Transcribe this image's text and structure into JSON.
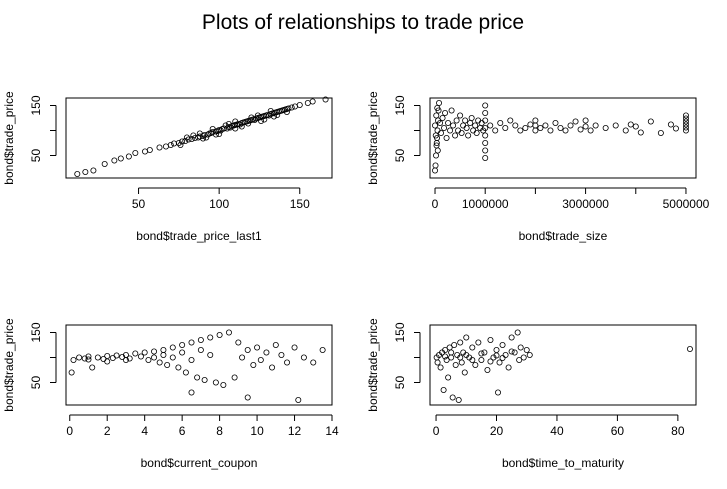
{
  "figure": {
    "title": "Plots of relationships to trade price"
  },
  "chart_data": [
    {
      "type": "scatter",
      "xlabel": "bond$trade_price_last1",
      "ylabel": "bond$trade_price",
      "xlim": [
        5,
        170
      ],
      "ylim": [
        5,
        165
      ],
      "xticks": [
        50,
        100,
        150
      ],
      "yticks": [
        50,
        100,
        150
      ],
      "xtick_labels": [
        "50",
        "100",
        "150"
      ],
      "ytick_labels": [
        "50",
        "",
        "150"
      ],
      "points": [
        [
          12,
          13
        ],
        [
          17,
          17
        ],
        [
          22,
          20
        ],
        [
          29,
          33
        ],
        [
          35,
          40
        ],
        [
          39,
          44
        ],
        [
          44,
          48
        ],
        [
          48,
          55
        ],
        [
          54,
          58
        ],
        [
          57,
          61
        ],
        [
          63,
          66
        ],
        [
          67,
          68
        ],
        [
          70,
          71
        ],
        [
          72,
          74
        ],
        [
          75,
          75
        ],
        [
          77,
          78
        ],
        [
          79,
          79
        ],
        [
          81,
          82
        ],
        [
          83,
          83
        ],
        [
          85,
          85
        ],
        [
          87,
          86
        ],
        [
          88,
          88
        ],
        [
          90,
          89
        ],
        [
          91,
          91
        ],
        [
          93,
          92
        ],
        [
          94,
          94
        ],
        [
          95,
          95
        ],
        [
          96,
          97
        ],
        [
          98,
          98
        ],
        [
          99,
          99
        ],
        [
          100,
          101
        ],
        [
          101,
          100
        ],
        [
          102,
          103
        ],
        [
          103,
          104
        ],
        [
          105,
          104
        ],
        [
          106,
          107
        ],
        [
          107,
          106
        ],
        [
          108,
          109
        ],
        [
          109,
          110
        ],
        [
          110,
          111
        ],
        [
          111,
          112
        ],
        [
          112,
          113
        ],
        [
          113,
          112
        ],
        [
          114,
          115
        ],
        [
          115,
          116
        ],
        [
          116,
          117
        ],
        [
          117,
          118
        ],
        [
          118,
          119
        ],
        [
          119,
          120
        ],
        [
          120,
          121
        ],
        [
          121,
          122
        ],
        [
          122,
          121
        ],
        [
          123,
          124
        ],
        [
          124,
          125
        ],
        [
          125,
          126
        ],
        [
          126,
          127
        ],
        [
          127,
          128
        ],
        [
          128,
          129
        ],
        [
          129,
          130
        ],
        [
          130,
          131
        ],
        [
          131,
          130
        ],
        [
          132,
          133
        ],
        [
          133,
          134
        ],
        [
          134,
          135
        ],
        [
          135,
          136
        ],
        [
          136,
          137
        ],
        [
          137,
          138
        ],
        [
          138,
          139
        ],
        [
          139,
          140
        ],
        [
          140,
          141
        ],
        [
          141,
          142
        ],
        [
          142,
          143
        ],
        [
          143,
          144
        ],
        [
          145,
          146
        ],
        [
          147,
          148
        ],
        [
          150,
          151
        ],
        [
          155,
          155
        ],
        [
          158,
          158
        ],
        [
          166,
          162
        ],
        [
          84,
          90
        ],
        [
          92,
          86
        ],
        [
          100,
          93
        ],
        [
          104,
          110
        ],
        [
          110,
          104
        ],
        [
          118,
          114
        ],
        [
          124,
          130
        ],
        [
          128,
          122
        ],
        [
          132,
          139
        ],
        [
          136,
          131
        ],
        [
          96,
          103
        ],
        [
          88,
          94
        ],
        [
          80,
          86
        ],
        [
          76,
          71
        ],
        [
          106,
          113
        ],
        [
          114,
          108
        ],
        [
          120,
          126
        ],
        [
          126,
          119
        ],
        [
          134,
          128
        ],
        [
          142,
          137
        ],
        [
          110,
          118
        ],
        [
          98,
          92
        ],
        [
          90,
          84
        ]
      ]
    },
    {
      "type": "scatter",
      "xlabel": "bond$trade_size",
      "ylabel": "bond$trade_price",
      "xlim": [
        -100000,
        5200000
      ],
      "ylim": [
        5,
        165
      ],
      "xticks": [
        0,
        1000000,
        2000000,
        3000000,
        4000000,
        5000000
      ],
      "yticks": [
        50,
        100,
        150
      ],
      "xtick_labels": [
        "0",
        "1000000",
        "",
        "3000000",
        "",
        "5000000"
      ],
      "ytick_labels": [
        "50",
        "",
        "150"
      ],
      "points": [
        [
          0,
          20
        ],
        [
          10000,
          30
        ],
        [
          20000,
          50
        ],
        [
          30000,
          70
        ],
        [
          40000,
          85
        ],
        [
          50000,
          100
        ],
        [
          60000,
          120
        ],
        [
          70000,
          140
        ],
        [
          80000,
          155
        ],
        [
          0,
          110
        ],
        [
          15000,
          90
        ],
        [
          25000,
          130
        ],
        [
          35000,
          75
        ],
        [
          45000,
          145
        ],
        [
          55000,
          60
        ],
        [
          100000,
          115
        ],
        [
          120000,
          95
        ],
        [
          150000,
          125
        ],
        [
          180000,
          105
        ],
        [
          200000,
          135
        ],
        [
          230000,
          85
        ],
        [
          260000,
          115
        ],
        [
          300000,
          100
        ],
        [
          330000,
          140
        ],
        [
          360000,
          110
        ],
        [
          400000,
          90
        ],
        [
          430000,
          120
        ],
        [
          460000,
          100
        ],
        [
          500000,
          130
        ],
        [
          530000,
          95
        ],
        [
          560000,
          110
        ],
        [
          600000,
          120
        ],
        [
          630000,
          105
        ],
        [
          660000,
          90
        ],
        [
          700000,
          115
        ],
        [
          730000,
          125
        ],
        [
          760000,
          100
        ],
        [
          800000,
          110
        ],
        [
          830000,
          95
        ],
        [
          860000,
          120
        ],
        [
          900000,
          105
        ],
        [
          930000,
          115
        ],
        [
          960000,
          100
        ],
        [
          1000000,
          45
        ],
        [
          1000000,
          60
        ],
        [
          1000000,
          75
        ],
        [
          1000000,
          90
        ],
        [
          1000000,
          105
        ],
        [
          1000000,
          120
        ],
        [
          1000000,
          135
        ],
        [
          1000000,
          150
        ],
        [
          1100000,
          110
        ],
        [
          1200000,
          100
        ],
        [
          1300000,
          115
        ],
        [
          1400000,
          105
        ],
        [
          1500000,
          120
        ],
        [
          1600000,
          110
        ],
        [
          1700000,
          100
        ],
        [
          1800000,
          105
        ],
        [
          1900000,
          112
        ],
        [
          2000000,
          100
        ],
        [
          2000000,
          110
        ],
        [
          2000000,
          120
        ],
        [
          2100000,
          105
        ],
        [
          2200000,
          110
        ],
        [
          2300000,
          100
        ],
        [
          2400000,
          115
        ],
        [
          2500000,
          105
        ],
        [
          2600000,
          100
        ],
        [
          2700000,
          110
        ],
        [
          2800000,
          118
        ],
        [
          2900000,
          102
        ],
        [
          3000000,
          108
        ],
        [
          3000000,
          120
        ],
        [
          3100000,
          100
        ],
        [
          3200000,
          110
        ],
        [
          3400000,
          105
        ],
        [
          3600000,
          110
        ],
        [
          3800000,
          100
        ],
        [
          3900000,
          112
        ],
        [
          4000000,
          108
        ],
        [
          4100000,
          96
        ],
        [
          4300000,
          118
        ],
        [
          4500000,
          95
        ],
        [
          4700000,
          112
        ],
        [
          4800000,
          104
        ],
        [
          5000000,
          100
        ],
        [
          5000000,
          106
        ],
        [
          5000000,
          112
        ],
        [
          5000000,
          118
        ],
        [
          5000000,
          124
        ],
        [
          5000000,
          130
        ]
      ]
    },
    {
      "type": "scatter",
      "xlabel": "bond$current_coupon",
      "ylabel": "bond$trade_price",
      "xlim": [
        -0.2,
        14
      ],
      "ylim": [
        5,
        165
      ],
      "xticks": [
        0,
        2,
        4,
        6,
        8,
        10,
        12,
        14
      ],
      "yticks": [
        50,
        100,
        150
      ],
      "xtick_labels": [
        "0",
        "2",
        "4",
        "6",
        "8",
        "10",
        "12",
        "14"
      ],
      "ytick_labels": [
        "50",
        "",
        "150"
      ],
      "points": [
        [
          0.1,
          70
        ],
        [
          0.2,
          95
        ],
        [
          0.5,
          100
        ],
        [
          0.8,
          98
        ],
        [
          1.0,
          102
        ],
        [
          1.2,
          80
        ],
        [
          1.5,
          100
        ],
        [
          1.8,
          97
        ],
        [
          2.0,
          103
        ],
        [
          2.3,
          99
        ],
        [
          2.5,
          104
        ],
        [
          2.8,
          101
        ],
        [
          3.0,
          105
        ],
        [
          3.2,
          98
        ],
        [
          3.5,
          108
        ],
        [
          3.8,
          102
        ],
        [
          4.0,
          110
        ],
        [
          4.2,
          95
        ],
        [
          4.5,
          112
        ],
        [
          4.8,
          90
        ],
        [
          5.0,
          115
        ],
        [
          5.2,
          85
        ],
        [
          5.5,
          120
        ],
        [
          5.8,
          80
        ],
        [
          6.0,
          125
        ],
        [
          6.2,
          70
        ],
        [
          6.5,
          130
        ],
        [
          6.8,
          60
        ],
        [
          7.0,
          135
        ],
        [
          7.2,
          55
        ],
        [
          7.5,
          140
        ],
        [
          7.8,
          50
        ],
        [
          8.0,
          145
        ],
        [
          8.2,
          45
        ],
        [
          8.5,
          150
        ],
        [
          8.8,
          60
        ],
        [
          9.0,
          130
        ],
        [
          9.2,
          100
        ],
        [
          9.5,
          115
        ],
        [
          9.8,
          85
        ],
        [
          10.0,
          120
        ],
        [
          10.2,
          95
        ],
        [
          10.5,
          110
        ],
        [
          10.8,
          80
        ],
        [
          11.0,
          125
        ],
        [
          11.3,
          105
        ],
        [
          11.6,
          90
        ],
        [
          12.0,
          120
        ],
        [
          12.2,
          15
        ],
        [
          12.5,
          100
        ],
        [
          13.0,
          90
        ],
        [
          13.5,
          115
        ],
        [
          9.5,
          20
        ],
        [
          6.5,
          30
        ],
        [
          5.0,
          105
        ],
        [
          5.5,
          100
        ],
        [
          6.0,
          110
        ],
        [
          6.5,
          95
        ],
        [
          7.0,
          115
        ],
        [
          7.5,
          105
        ],
        [
          4.5,
          100
        ],
        [
          3.0,
          95
        ],
        [
          2.0,
          92
        ],
        [
          1.0,
          96
        ]
      ]
    },
    {
      "type": "scatter",
      "xlabel": "bond$time_to_maturity",
      "ylabel": "bond$trade_price",
      "xlim": [
        -2,
        86
      ],
      "ylim": [
        5,
        165
      ],
      "xticks": [
        0,
        20,
        40,
        60,
        80
      ],
      "yticks": [
        50,
        100,
        150
      ],
      "xtick_labels": [
        "0",
        "20",
        "40",
        "60",
        "80"
      ],
      "ytick_labels": [
        "50",
        "",
        "150"
      ],
      "points": [
        [
          0.2,
          100
        ],
        [
          0.5,
          90
        ],
        [
          1.0,
          105
        ],
        [
          1.5,
          80
        ],
        [
          2.0,
          110
        ],
        [
          2.5,
          35
        ],
        [
          3.0,
          115
        ],
        [
          3.5,
          95
        ],
        [
          4.0,
          60
        ],
        [
          4.5,
          120
        ],
        [
          5.0,
          100
        ],
        [
          5.5,
          20
        ],
        [
          6.0,
          125
        ],
        [
          6.5,
          85
        ],
        [
          7.0,
          105
        ],
        [
          7.5,
          15
        ],
        [
          8.0,
          130
        ],
        [
          8.5,
          90
        ],
        [
          9.0,
          110
        ],
        [
          9.5,
          70
        ],
        [
          10.0,
          140
        ],
        [
          11.0,
          100
        ],
        [
          12.0,
          120
        ],
        [
          13.0,
          85
        ],
        [
          14.0,
          130
        ],
        [
          15.0,
          95
        ],
        [
          16.0,
          110
        ],
        [
          17.0,
          75
        ],
        [
          18.0,
          135
        ],
        [
          19.0,
          100
        ],
        [
          20.0,
          115
        ],
        [
          20.5,
          30
        ],
        [
          21.0,
          90
        ],
        [
          22.0,
          125
        ],
        [
          23.0,
          105
        ],
        [
          24.0,
          80
        ],
        [
          25.0,
          140
        ],
        [
          26.0,
          110
        ],
        [
          27.0,
          150
        ],
        [
          27.5,
          95
        ],
        [
          28.0,
          120
        ],
        [
          29.0,
          100
        ],
        [
          30.0,
          115
        ],
        [
          31.0,
          105
        ],
        [
          84.0,
          117
        ],
        [
          5.0,
          110
        ],
        [
          10.0,
          105
        ],
        [
          15.0,
          108
        ],
        [
          20.0,
          104
        ],
        [
          25.0,
          112
        ],
        [
          12.0,
          95
        ],
        [
          18.0,
          92
        ],
        [
          8.0,
          100
        ],
        [
          3.0,
          102
        ],
        [
          22.0,
          99
        ]
      ]
    }
  ]
}
